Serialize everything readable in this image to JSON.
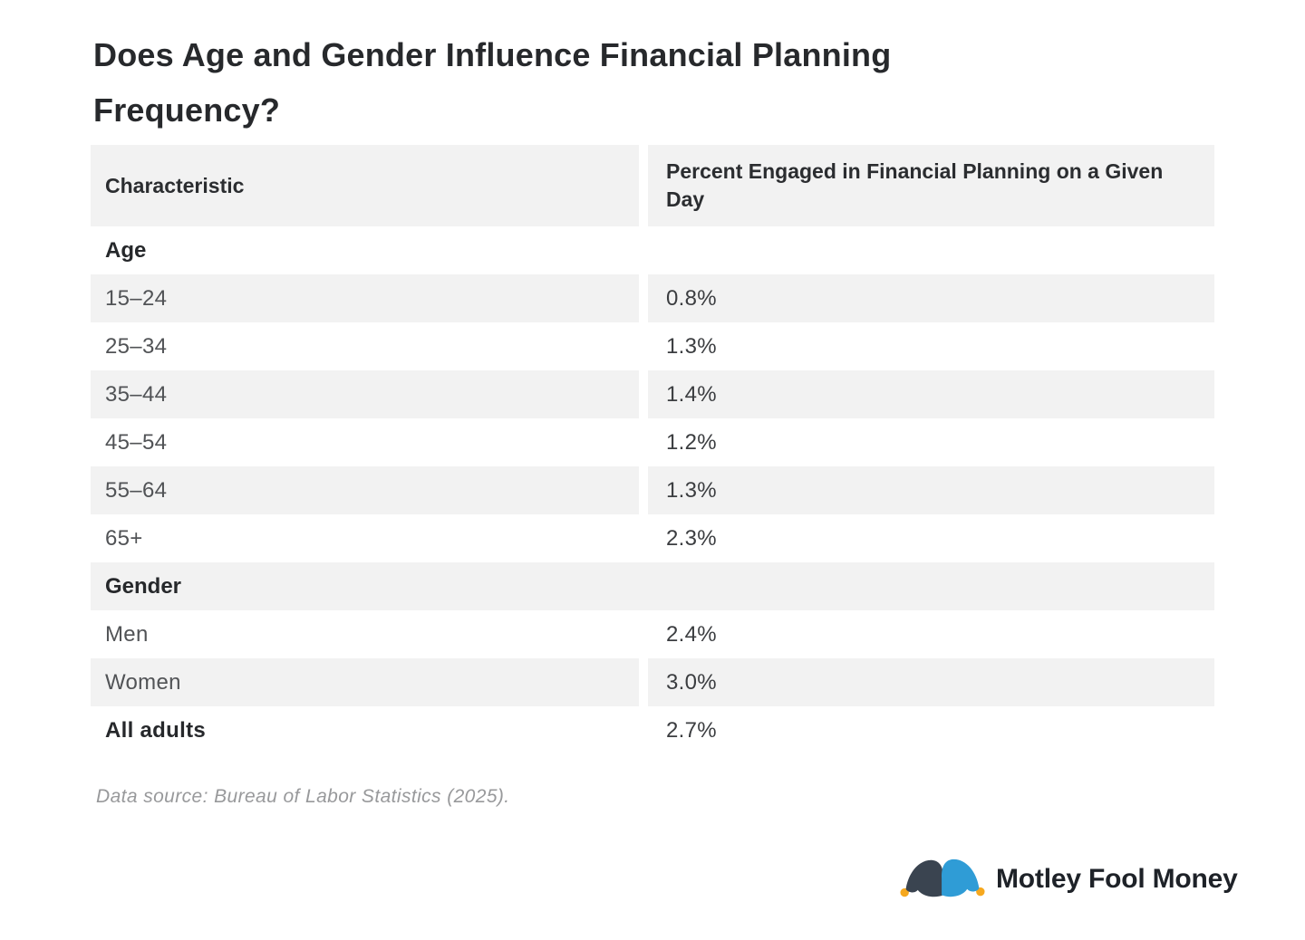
{
  "title": "Does Age and Gender Influence Financial Planning Frequency?",
  "table": {
    "columns": [
      "Characteristic",
      "Percent Engaged in Financial Planning on a Given Day"
    ],
    "rows": [
      {
        "type": "section",
        "label": "Age"
      },
      {
        "type": "data",
        "label": "15–24",
        "value": "0.8%"
      },
      {
        "type": "data",
        "label": "25–34",
        "value": "1.3%"
      },
      {
        "type": "data",
        "label": "35–44",
        "value": "1.4%"
      },
      {
        "type": "data",
        "label": "45–54",
        "value": "1.2%"
      },
      {
        "type": "data",
        "label": "55–64",
        "value": "1.3%"
      },
      {
        "type": "data",
        "label": "65+",
        "value": "2.3%"
      },
      {
        "type": "section",
        "label": "Gender"
      },
      {
        "type": "data",
        "label": "Men",
        "value": "2.4%"
      },
      {
        "type": "data",
        "label": "Women",
        "value": "3.0%"
      },
      {
        "type": "data",
        "label": "All adults",
        "value": "2.7%",
        "bold_label": true
      }
    ]
  },
  "footer": {
    "source_note": "Data source: Bureau of Labor Statistics (2025)."
  },
  "logo": {
    "text": "Motley Fool Money"
  },
  "colors": {
    "row_stripe": "#f2f2f2",
    "title_text": "#27292c",
    "body_text": "#515356",
    "value_text": "#3b3d40",
    "bold_text": "#26282b",
    "source_text": "#98999b",
    "logo_dark": "#3a4450",
    "logo_blue": "#2f9cd6",
    "logo_orange": "#f6a81e",
    "logo_text": "#1e2228"
  },
  "chart_data": {
    "type": "table",
    "title": "Does Age and Gender Influence Financial Planning Frequency?",
    "columns": [
      "Characteristic",
      "Percent Engaged in Financial Planning on a Given Day"
    ],
    "value_unit": "%",
    "sections": [
      {
        "name": "Age",
        "rows": [
          {
            "characteristic": "15–24",
            "percent": 0.8
          },
          {
            "characteristic": "25–34",
            "percent": 1.3
          },
          {
            "characteristic": "35–44",
            "percent": 1.4
          },
          {
            "characteristic": "45–54",
            "percent": 1.2
          },
          {
            "characteristic": "55–64",
            "percent": 1.3
          },
          {
            "characteristic": "65+",
            "percent": 2.3
          }
        ]
      },
      {
        "name": "Gender",
        "rows": [
          {
            "characteristic": "Men",
            "percent": 2.4
          },
          {
            "characteristic": "Women",
            "percent": 3.0
          }
        ]
      }
    ],
    "totals": [
      {
        "characteristic": "All adults",
        "percent": 2.7
      }
    ],
    "source": "Data source: Bureau of Labor Statistics (2025)."
  }
}
